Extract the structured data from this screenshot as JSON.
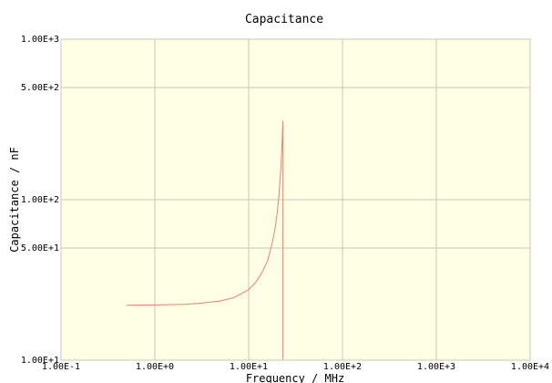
{
  "chart_data": {
    "type": "line",
    "title": "Capacitance",
    "xlabel": "Frequency / MHz",
    "ylabel": "Capacitance / nF",
    "xscale": "log",
    "yscale": "log",
    "xlim": [
      0.1,
      10000
    ],
    "ylim": [
      10,
      1000
    ],
    "grid": true,
    "x_ticks": [
      "1.00E-1",
      "1.00E+0",
      "1.00E+1",
      "1.00E+2",
      "1.00E+3",
      "1.00E+4"
    ],
    "x_tick_values": [
      0.1,
      1,
      10,
      100,
      1000,
      10000
    ],
    "y_ticks": [
      "1.00E+1",
      "5.00E+1",
      "1.00E+2",
      "5.00E+2",
      "1.00E+3"
    ],
    "y_tick_values": [
      10,
      50,
      100,
      500,
      1000
    ],
    "colors": {
      "plot_bg": "#ffffe6",
      "grid": "#c8c8b4",
      "line": "#f08070",
      "axis": "#000000"
    },
    "series": [
      {
        "x": [
          0.5,
          1,
          2,
          3,
          5,
          7,
          10,
          12,
          14,
          16,
          18,
          19,
          20,
          21,
          22,
          22.5,
          22.8,
          23,
          23.2,
          23.2
        ],
        "y": [
          22.0,
          22.1,
          22.3,
          22.6,
          23.4,
          24.6,
          27.5,
          30.8,
          35.5,
          42.0,
          55.0,
          65.0,
          80.0,
          105.0,
          155.0,
          200.0,
          240.0,
          280.0,
          310.0,
          10.0
        ]
      }
    ]
  }
}
